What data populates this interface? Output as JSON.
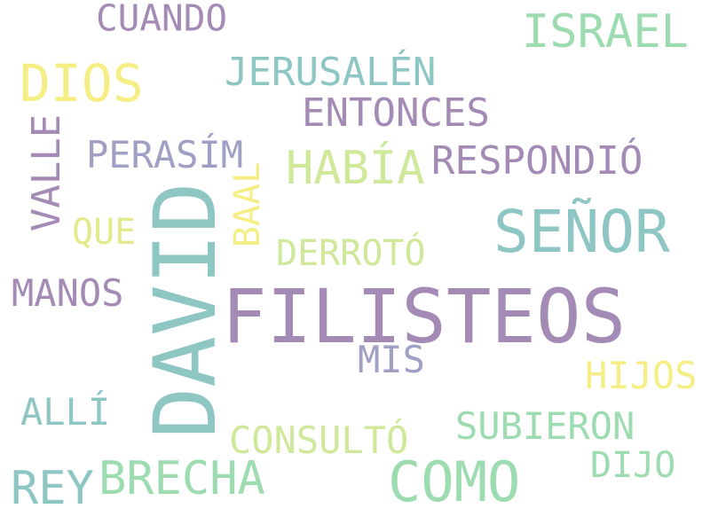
{
  "colors": {
    "purple": "#a48bb5",
    "teal": "#8ec6c4",
    "yellow": "#f5ee85",
    "green": "#9ddcb0",
    "lime": "#cfe89a",
    "lightyellow": "#e3ea8c",
    "slate": "#a09fc4"
  },
  "words": [
    {
      "name": "word-cuando",
      "text": "CUANDO",
      "color": "#a48bb5"
    },
    {
      "name": "word-israel",
      "text": "ISRAEL",
      "color": "#9ddcb0"
    },
    {
      "name": "word-dios",
      "text": "DIOS",
      "color": "#f5ee85"
    },
    {
      "name": "word-jerusalen",
      "text": "JERUSALÉN",
      "color": "#8ec6c4"
    },
    {
      "name": "word-entonces",
      "text": "ENTONCES",
      "color": "#a48bb5"
    },
    {
      "name": "word-perasim",
      "text": "PERASÍM",
      "color": "#a09fc4"
    },
    {
      "name": "word-habia",
      "text": "HABÍA",
      "color": "#cfe89a"
    },
    {
      "name": "word-respondio",
      "text": "RESPONDIÓ",
      "color": "#a48bb5"
    },
    {
      "name": "word-que",
      "text": "QUE",
      "color": "#e3ea8c"
    },
    {
      "name": "word-senor",
      "text": "SEÑOR",
      "color": "#8ec6c4"
    },
    {
      "name": "word-derroto",
      "text": "DERROTÓ",
      "color": "#cfe89a"
    },
    {
      "name": "word-manos",
      "text": "MANOS",
      "color": "#a48bb5"
    },
    {
      "name": "word-filisteos",
      "text": "FILISTEOS",
      "color": "#a48bb5"
    },
    {
      "name": "word-mis",
      "text": "MIS",
      "color": "#a09fc4"
    },
    {
      "name": "word-hijos",
      "text": "HIJOS",
      "color": "#f5ee85"
    },
    {
      "name": "word-alli",
      "text": "ALLÍ",
      "color": "#8ec6c4"
    },
    {
      "name": "word-subieron",
      "text": "SUBIERON",
      "color": "#9ddcb0"
    },
    {
      "name": "word-consulto",
      "text": "CONSULTÓ",
      "color": "#cfe89a"
    },
    {
      "name": "word-dijo",
      "text": "DIJO",
      "color": "#9ddcb0"
    },
    {
      "name": "word-rey",
      "text": "REY",
      "color": "#8ec6c4"
    },
    {
      "name": "word-brecha",
      "text": "BRECHA",
      "color": "#9ddcb0"
    },
    {
      "name": "word-como",
      "text": "COMO",
      "color": "#9ddcb0"
    },
    {
      "name": "word-valle",
      "text": "VALLE",
      "color": "#a48bb5"
    },
    {
      "name": "word-baal",
      "text": "BAAL",
      "color": "#f5ee85"
    },
    {
      "name": "word-david",
      "text": "DAVID",
      "color": "#8ec6c4"
    }
  ]
}
